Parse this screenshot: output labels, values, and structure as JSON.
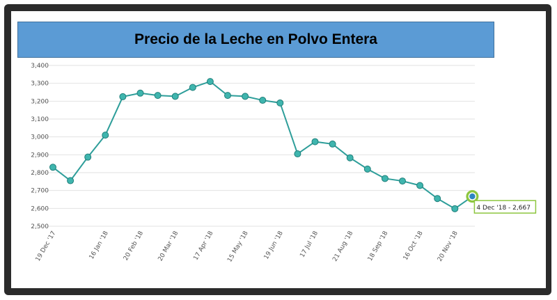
{
  "chart_data": {
    "type": "line",
    "title": "Precio de la Leche en Polvo Entera",
    "xlabel": "",
    "ylabel": "",
    "ylim": [
      2500,
      3400
    ],
    "y_ticks": [
      2500,
      2600,
      2700,
      2800,
      2900,
      3000,
      3100,
      3200,
      3300,
      3400
    ],
    "y_tick_labels": [
      "2,500",
      "2,600",
      "2,700",
      "2,800",
      "2,900",
      "3,000",
      "3,100",
      "3,200",
      "3,300",
      "3,400"
    ],
    "x_tick_labels": [
      {
        "index": 0,
        "label": "19 Dec '17"
      },
      {
        "index": 3,
        "label": "16 Jan '18"
      },
      {
        "index": 5,
        "label": "20 Feb '18"
      },
      {
        "index": 7,
        "label": "20 Mar '18"
      },
      {
        "index": 9,
        "label": "17 Apr '18"
      },
      {
        "index": 11,
        "label": "15 May '18"
      },
      {
        "index": 13,
        "label": "19 Jun '18"
      },
      {
        "index": 15,
        "label": "17 Jul '18"
      },
      {
        "index": 17,
        "label": "21 Aug '18"
      },
      {
        "index": 19,
        "label": "18 Sep '18"
      },
      {
        "index": 21,
        "label": "16 Oct '18"
      },
      {
        "index": 23,
        "label": "20 Nov '18"
      }
    ],
    "grid": true,
    "series": [
      {
        "values": [
          2830,
          2755,
          2887,
          3010,
          3225,
          3245,
          3232,
          3227,
          3277,
          3310,
          3232,
          3227,
          3205,
          3190,
          2905,
          2973,
          2960,
          2883,
          2820,
          2767,
          2753,
          2728,
          2655,
          2598,
          2667
        ]
      }
    ],
    "tooltip": {
      "index": 24,
      "text": "4 Dec '18  -  2,667"
    },
    "colors": {
      "line": "#2e9e9a",
      "marker_fill": "#3fb5ae",
      "marker_stroke": "#1f7f7a",
      "highlight": "#8dc63f",
      "highlight_inner": "#2e86c1",
      "grid": "#e2e2e2",
      "title_bg": "#5b9bd5"
    }
  }
}
